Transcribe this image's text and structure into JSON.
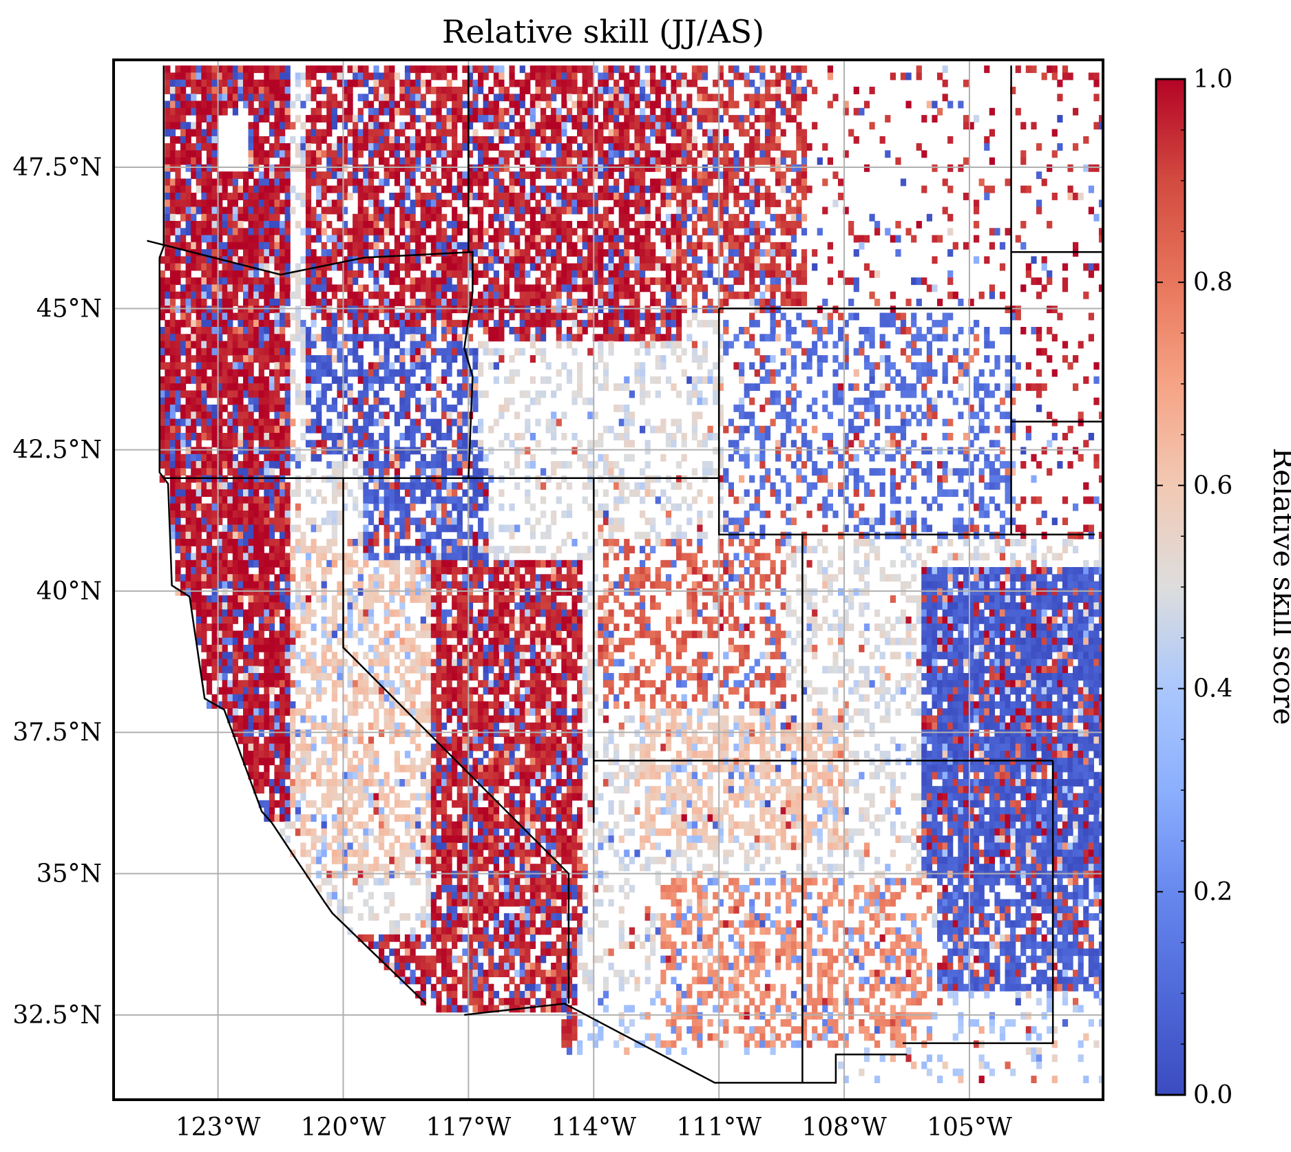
{
  "title": "Relative skill (JJ/AS)",
  "map": {
    "lon_range": [
      -125.5,
      -101.8
    ],
    "lat_range": [
      31.0,
      49.4
    ],
    "lon_ticks": [
      {
        "value": -123,
        "label": "123°W"
      },
      {
        "value": -120,
        "label": "120°W"
      },
      {
        "value": -117,
        "label": "117°W"
      },
      {
        "value": -114,
        "label": "114°W"
      },
      {
        "value": -111,
        "label": "111°W"
      },
      {
        "value": -108,
        "label": "108°W"
      },
      {
        "value": -105,
        "label": "105°W"
      }
    ],
    "lat_ticks": [
      {
        "value": 32.5,
        "label": "32.5°N"
      },
      {
        "value": 35,
        "label": "35°N"
      },
      {
        "value": 37.5,
        "label": "37.5°N"
      },
      {
        "value": 40,
        "label": "40°N"
      },
      {
        "value": 42.5,
        "label": "42.5°N"
      },
      {
        "value": 45,
        "label": "45°N"
      },
      {
        "value": 47.5,
        "label": "47.5°N"
      }
    ],
    "grid": true,
    "gridline_color": "#b0b0b0",
    "cell_size_deg": 0.125,
    "field_description": "scattered gridded relative skill score (0 = blue, 1 = red) over western United States land cells",
    "regions": [
      {
        "name": "pacific-northwest-coast",
        "dominant_value": 0.98
      },
      {
        "name": "columbia-plateau",
        "dominant_value": 0.97
      },
      {
        "name": "idaho-montana-rockies",
        "dominant_value": 0.97
      },
      {
        "name": "oregon-great-basin",
        "dominant_value": 0.05
      },
      {
        "name": "california-sierra",
        "dominant_value": 0.96
      },
      {
        "name": "nevada-great-basin",
        "dominant_value": 0.9
      },
      {
        "name": "utah-arizona-plateau",
        "dominant_value": 0.85
      },
      {
        "name": "four-corners",
        "dominant_value": 0.55
      },
      {
        "name": "colorado-plains",
        "dominant_value": 0.05
      },
      {
        "name": "new-mexico-east",
        "dominant_value": 0.06
      },
      {
        "name": "wyoming-basin",
        "dominant_value": 0.15
      }
    ]
  },
  "colorbar": {
    "label": "Relative skill score",
    "range": [
      0.0,
      1.0
    ],
    "ticks": [
      {
        "value": 0.0,
        "label": "0.0"
      },
      {
        "value": 0.2,
        "label": "0.2"
      },
      {
        "value": 0.4,
        "label": "0.4"
      },
      {
        "value": 0.6,
        "label": "0.6"
      },
      {
        "value": 0.8,
        "label": "0.8"
      },
      {
        "value": 1.0,
        "label": "1.0"
      }
    ],
    "colormap": "coolwarm",
    "color_low": "#3b4cc0",
    "color_mid": "#dddddd",
    "color_high": "#b40426"
  }
}
